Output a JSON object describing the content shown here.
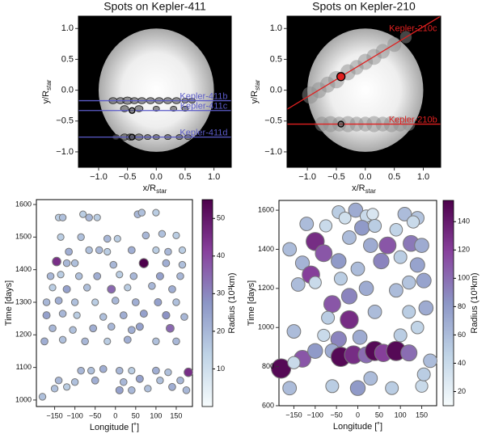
{
  "chart_data": [
    {
      "type": "transit",
      "title": "Spots on Kepler-411",
      "xlabel": {
        "text": "x/R",
        "sub": "star"
      },
      "ylabel": {
        "text": "y/R",
        "sub": "star"
      },
      "xlim": [
        -1.35,
        1.3
      ],
      "ylim": [
        -1.25,
        1.2
      ],
      "xticks": [
        {
          "value": -1,
          "label": "−1.0"
        },
        {
          "value": -0.5,
          "label": "−0.5"
        },
        {
          "value": 0,
          "label": "0.0"
        },
        {
          "value": 0.5,
          "label": "0.5"
        },
        {
          "value": 1,
          "label": "1.0"
        }
      ],
      "yticks": [
        {
          "value": -1,
          "label": "−1.0"
        },
        {
          "value": -0.5,
          "label": "−0.5"
        },
        {
          "value": 0,
          "label": "0.0"
        },
        {
          "value": 0.5,
          "label": "0.5"
        },
        {
          "value": 1,
          "label": "1.0"
        }
      ],
      "series": [
        {
          "name": "Kepler-411b",
          "color": "#5b5bc8",
          "line_x": [
            -1.35,
            1.3
          ],
          "line_y": [
            -0.17,
            -0.17
          ],
          "spots_x": [
            -0.75,
            -0.62,
            -0.5,
            -0.38,
            -0.25,
            -0.1,
            0.05,
            0.2,
            0.35,
            0.5,
            0.62
          ],
          "spots_y": [
            -0.17,
            -0.17,
            -0.17,
            -0.17,
            -0.17,
            -0.17,
            -0.17,
            -0.17,
            -0.17,
            -0.17,
            -0.17
          ],
          "spots_r": [
            0.05,
            0.05,
            0.06,
            0.05,
            0.05,
            0.05,
            0.05,
            0.05,
            0.05,
            0.04,
            0.04
          ]
        },
        {
          "name": "Kepler-411c",
          "color": "#5b5bc8",
          "line_x": [
            -1.35,
            1.3
          ],
          "line_y": [
            -0.33,
            -0.33
          ],
          "spots_x": [
            -0.55,
            -0.3,
            0.0,
            0.3,
            0.5
          ],
          "spots_y": [
            -0.3,
            -0.3,
            -0.3,
            -0.3,
            -0.3
          ],
          "spots_r": [
            0.05,
            0.05,
            0.04,
            0.04,
            0.04
          ],
          "planet_x": -0.42,
          "planet_y": -0.33
        },
        {
          "name": "Kepler-411d",
          "color": "#5b5bc8",
          "line_x": [
            -1.35,
            1.3
          ],
          "line_y": [
            -0.76,
            -0.76
          ],
          "spots_x": [
            -0.7,
            -0.55,
            -0.45,
            -0.3,
            -0.15,
            0.0,
            0.2,
            0.4,
            0.55
          ],
          "spots_y": [
            -0.76,
            -0.76,
            -0.76,
            -0.76,
            -0.76,
            -0.76,
            -0.76,
            -0.76,
            -0.76
          ],
          "spots_r": [
            0.04,
            0.05,
            0.05,
            0.05,
            0.04,
            0.04,
            0.04,
            0.04,
            0.04
          ],
          "planet_x": -0.42,
          "planet_y": -0.76
        }
      ]
    },
    {
      "type": "transit",
      "title": "Spots on Kepler-210",
      "xlabel": {
        "text": "x/R",
        "sub": "star"
      },
      "ylabel": {
        "text": "y/R",
        "sub": "star"
      },
      "xlim": [
        -1.35,
        1.3
      ],
      "ylim": [
        -1.25,
        1.2
      ],
      "xticks": [
        {
          "value": -1,
          "label": "−1.0"
        },
        {
          "value": -0.5,
          "label": "−0.5"
        },
        {
          "value": 0,
          "label": "0.0"
        },
        {
          "value": 0.5,
          "label": "0.5"
        },
        {
          "value": 1,
          "label": "1.0"
        }
      ],
      "yticks": [
        {
          "value": -1,
          "label": "−1.0"
        },
        {
          "value": -0.5,
          "label": "−0.5"
        },
        {
          "value": 0,
          "label": "0.0"
        },
        {
          "value": 0.5,
          "label": "0.5"
        },
        {
          "value": 1,
          "label": "1.0"
        }
      ],
      "series": [
        {
          "name": "Kepler-210c",
          "color": "#e02020",
          "line_x": [
            -1.35,
            1.3
          ],
          "line_y": [
            -0.31,
            1.2
          ],
          "spots_x": [
            -0.95,
            -0.8,
            -0.65,
            -0.5,
            -0.3,
            -0.15,
            0.0,
            0.15,
            0.3,
            0.5,
            0.7
          ],
          "spots_y": [
            -0.08,
            0.0,
            0.09,
            0.17,
            0.29,
            0.37,
            0.46,
            0.54,
            0.63,
            0.74,
            0.86
          ],
          "spots_r": [
            0.14,
            0.13,
            0.13,
            0.14,
            0.13,
            0.12,
            0.13,
            0.13,
            0.12,
            0.12,
            0.1
          ],
          "planet_x": -0.42,
          "planet_y": 0.22
        },
        {
          "name": "Kepler-210b",
          "color": "#e02020",
          "line_x": [
            -1.35,
            1.3
          ],
          "line_y": [
            -0.55,
            -0.55
          ],
          "spots_x": [
            -0.75,
            -0.6,
            -0.45,
            -0.3,
            -0.15,
            0.0,
            0.15,
            0.3,
            0.45,
            0.6,
            0.75
          ],
          "spots_y": [
            -0.55,
            -0.55,
            -0.55,
            -0.55,
            -0.55,
            -0.55,
            -0.55,
            -0.55,
            -0.55,
            -0.55,
            -0.55
          ],
          "spots_r": [
            0.12,
            0.13,
            0.12,
            0.13,
            0.12,
            0.12,
            0.13,
            0.12,
            0.13,
            0.12,
            0.11
          ],
          "planet_x": -0.42,
          "planet_y": -0.55
        }
      ]
    },
    {
      "type": "scatter",
      "xlabel": "Longitude [˚]",
      "ylabel": "Time [days]",
      "xlim": [
        -195,
        190
      ],
      "ylim": [
        980,
        1615
      ],
      "xticks": [
        {
          "value": -150,
          "label": "−150"
        },
        {
          "value": -100,
          "label": "−100"
        },
        {
          "value": -50,
          "label": "−50"
        },
        0,
        50,
        100,
        150
      ],
      "yticks": [
        1000,
        1100,
        1200,
        1300,
        1400,
        1500,
        1600
      ],
      "x": [
        -140,
        -130,
        -80,
        -65,
        -45,
        55,
        65,
        100,
        -135,
        -85,
        -20,
        5,
        75,
        115,
        150,
        -115,
        -65,
        -40,
        -20,
        40,
        100,
        130,
        165,
        -145,
        -120,
        -100,
        -5,
        70,
        125,
        165,
        -160,
        -135,
        -90,
        -45,
        10,
        45,
        110,
        160,
        -155,
        -120,
        -70,
        -10,
        30,
        90,
        140,
        -170,
        -140,
        -100,
        -50,
        0,
        50,
        105,
        150,
        -170,
        -130,
        -95,
        -30,
        20,
        70,
        125,
        170,
        -155,
        -105,
        -55,
        -10,
        40,
        60,
        135,
        -175,
        -130,
        -75,
        -20,
        30,
        100,
        150,
        -85,
        -60,
        -30,
        10,
        40,
        100,
        130,
        180,
        -140,
        -100,
        -50,
        20,
        60,
        110,
        160,
        -150,
        -120,
        10,
        40,
        80,
        140,
        175,
        -180
      ],
      "values": [
        1560,
        1560,
        1570,
        1560,
        1560,
        1570,
        1575,
        1575,
        1500,
        1500,
        1495,
        1495,
        1505,
        1510,
        1505,
        1455,
        1460,
        1460,
        1455,
        1460,
        1460,
        1455,
        1460,
        1425,
        1420,
        1420,
        1415,
        1420,
        1420,
        1415,
        1380,
        1385,
        1380,
        1380,
        1385,
        1380,
        1380,
        1380,
        1345,
        1340,
        1345,
        1340,
        1345,
        1350,
        1340,
        1300,
        1305,
        1300,
        1300,
        1305,
        1300,
        1300,
        1300,
        1260,
        1265,
        1260,
        1255,
        1260,
        1265,
        1260,
        1255,
        1220,
        1215,
        1220,
        1225,
        1215,
        1225,
        1220,
        1180,
        1185,
        1180,
        1180,
        1185,
        1180,
        1180,
        1090,
        1090,
        1095,
        1090,
        1090,
        1090,
        1085,
        1085,
        1060,
        1055,
        1060,
        1055,
        1065,
        1060,
        1060,
        1035,
        1040,
        1030,
        1030,
        1035,
        1040,
        1030,
        1010
      ],
      "radius": [
        15,
        18,
        15,
        20,
        15,
        20,
        18,
        15,
        15,
        18,
        20,
        15,
        20,
        18,
        15,
        22,
        18,
        20,
        15,
        22,
        15,
        20,
        15,
        45,
        20,
        18,
        20,
        55,
        22,
        18,
        20,
        15,
        18,
        22,
        15,
        20,
        25,
        20,
        15,
        25,
        18,
        35,
        15,
        20,
        22,
        20,
        22,
        18,
        15,
        20,
        22,
        25,
        18,
        25,
        20,
        15,
        18,
        22,
        25,
        28,
        20,
        20,
        18,
        22,
        20,
        22,
        25,
        35,
        22,
        18,
        20,
        15,
        22,
        18,
        20,
        20,
        18,
        22,
        20,
        15,
        22,
        18,
        45,
        20,
        18,
        22,
        20,
        25,
        18,
        20,
        18,
        15,
        25,
        20,
        18,
        22,
        20,
        18
      ],
      "colorbar": {
        "label": "Radius (10³km)",
        "lim": [
          0,
          55
        ],
        "ticks": [
          10,
          20,
          30,
          40,
          50
        ]
      },
      "colormap": [
        "#f7fcfd",
        "#bfd3e6",
        "#8c96c6",
        "#88419d",
        "#4d004b"
      ]
    },
    {
      "type": "scatter",
      "xlabel": "Longitude [˚]",
      "ylabel": "Time [days]",
      "xlim": [
        -185,
        185
      ],
      "ylim": [
        600,
        1650
      ],
      "xticks": [
        {
          "value": -150,
          "label": "−150"
        },
        {
          "value": -100,
          "label": "−100"
        },
        {
          "value": -50,
          "label": "−50"
        },
        0,
        50,
        100,
        150
      ],
      "yticks": [
        600,
        800,
        1000,
        1200,
        1400,
        1600
      ],
      "x": [
        -5,
        -45,
        -30,
        20,
        35,
        110,
        140,
        130,
        -120,
        -75,
        10,
        40,
        90,
        -100,
        -80,
        -20,
        30,
        70,
        125,
        150,
        -160,
        -130,
        -110,
        -45,
        0,
        55,
        100,
        140,
        -140,
        -100,
        -40,
        20,
        90,
        120,
        155,
        -60,
        -20,
        -70,
        -20,
        40,
        120,
        160,
        -150,
        -80,
        -45,
        5,
        100,
        140,
        -180,
        -130,
        -100,
        -60,
        -40,
        -10,
        20,
        40,
        60,
        90,
        120,
        170,
        -160,
        -60,
        0,
        80,
        150,
        30,
        155,
        -150
      ],
      "values": [
        1600,
        1590,
        1560,
        1570,
        1580,
        1580,
        1560,
        1540,
        1530,
        1520,
        1510,
        1520,
        1500,
        1440,
        1380,
        1460,
        1420,
        1420,
        1430,
        1420,
        1400,
        1330,
        1270,
        1340,
        1300,
        1340,
        1360,
        1320,
        1220,
        1230,
        1250,
        1200,
        1190,
        1230,
        1240,
        1120,
        1160,
        1050,
        1040,
        1080,
        1080,
        1100,
        980,
        960,
        940,
        950,
        960,
        1000,
        790,
        840,
        880,
        880,
        850,
        860,
        860,
        880,
        870,
        880,
        870,
        830,
        690,
        700,
        690,
        690,
        700,
        740,
        760,
        820
      ],
      "radius": [
        70,
        50,
        35,
        40,
        30,
        60,
        55,
        40,
        60,
        40,
        80,
        50,
        45,
        130,
        110,
        60,
        70,
        110,
        95,
        70,
        60,
        65,
        120,
        80,
        60,
        90,
        50,
        75,
        60,
        40,
        50,
        70,
        60,
        55,
        75,
        110,
        90,
        50,
        130,
        60,
        50,
        70,
        60,
        40,
        90,
        70,
        50,
        45,
        150,
        110,
        80,
        70,
        150,
        130,
        100,
        150,
        120,
        150,
        100,
        60,
        60,
        50,
        80,
        50,
        40,
        60,
        50,
        40
      ],
      "colorbar": {
        "label": "Radius (10³km)",
        "lim": [
          10,
          155
        ],
        "ticks": [
          20,
          40,
          60,
          80,
          100,
          120,
          140
        ]
      },
      "colormap": [
        "#f7fcfd",
        "#bfd3e6",
        "#8c96c6",
        "#88419d",
        "#4d004b"
      ]
    }
  ]
}
